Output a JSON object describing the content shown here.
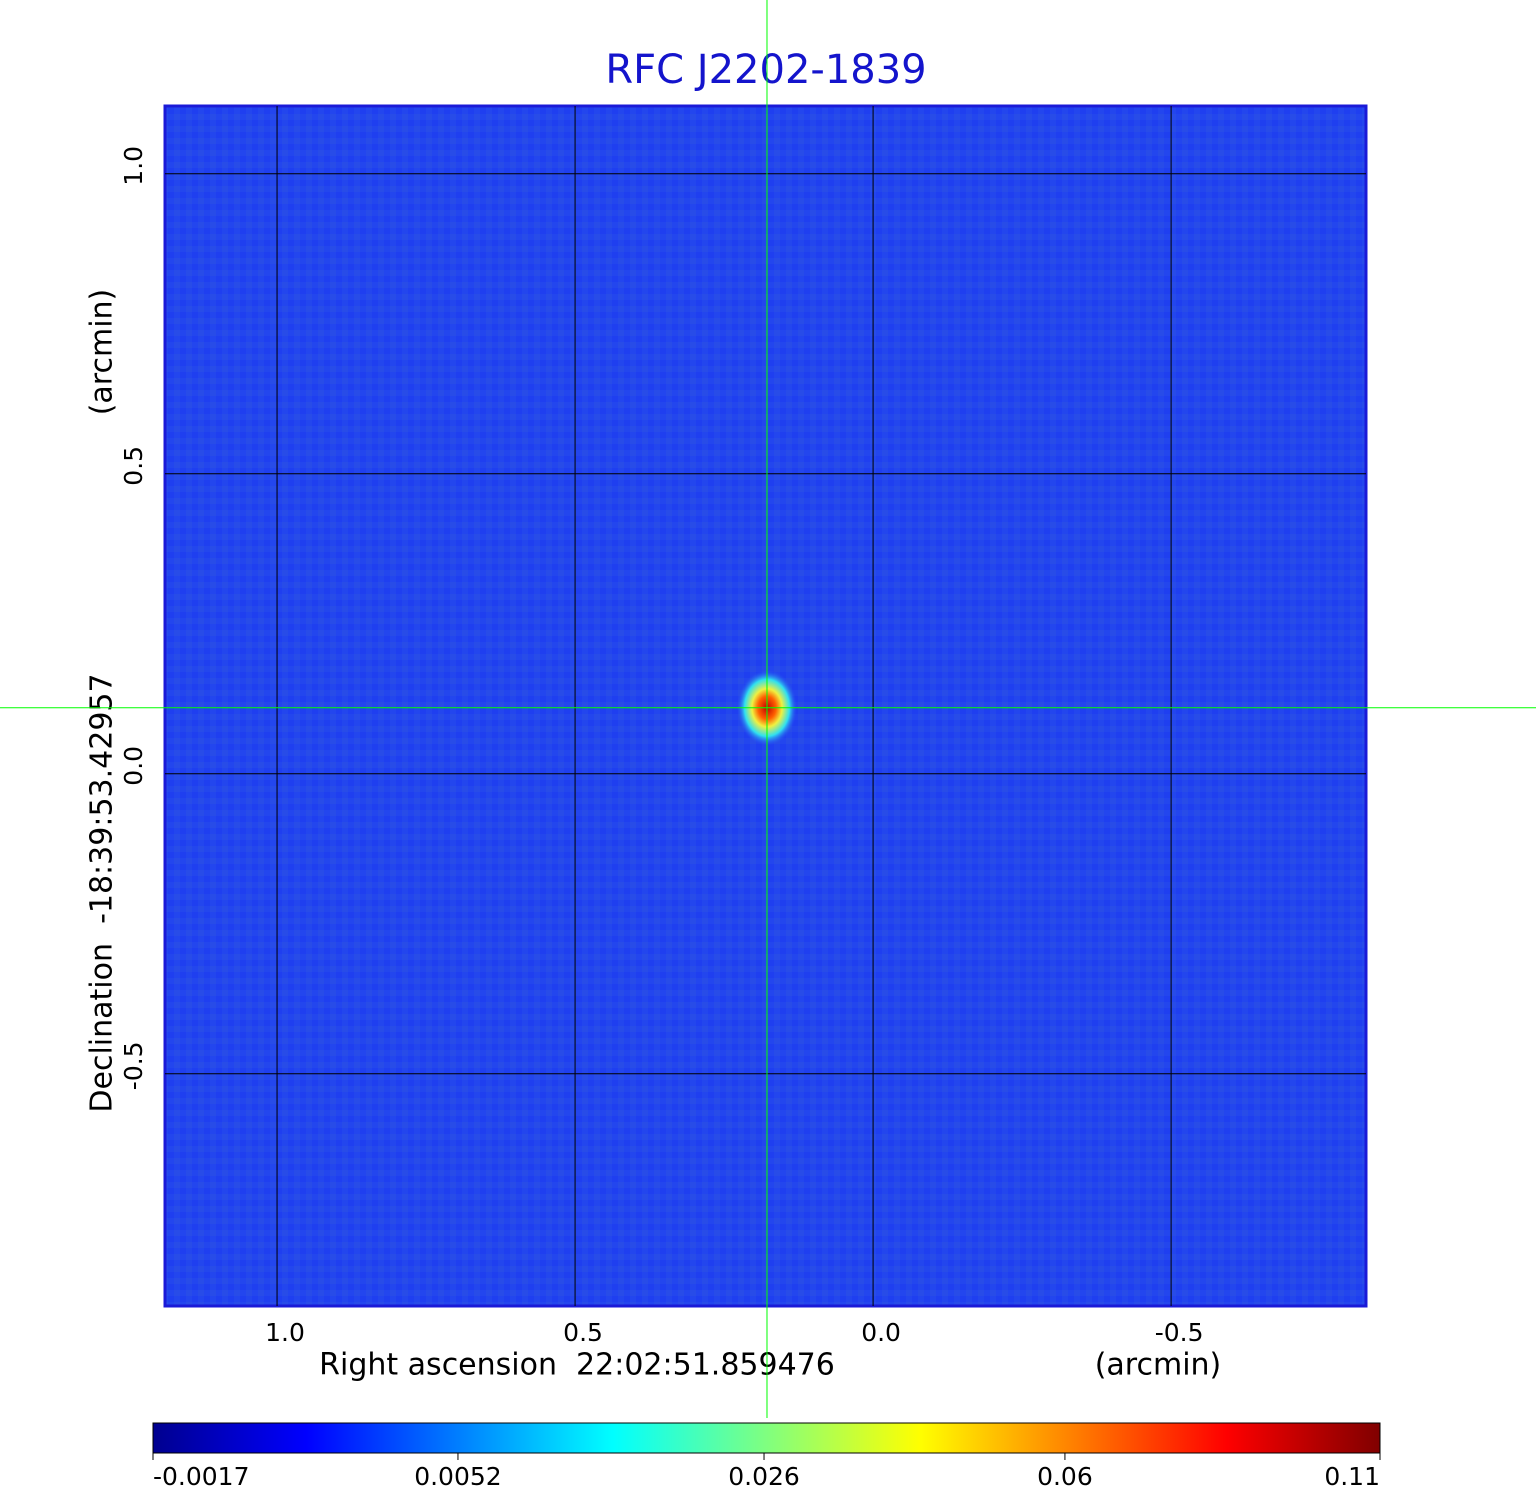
{
  "chart_data": {
    "type": "image",
    "title": "RFC J2202-1839",
    "x_label": "Right ascension  22:02:51.859476",
    "x_unit": "(arcmin)",
    "y_label": "Declination  -18:39:53.42957",
    "y_unit": "(arcmin)",
    "xlim": [
      1.188,
      -0.827
    ],
    "ylim": [
      -0.887,
      1.113
    ],
    "xticks": [
      {
        "value": 1,
        "label": "1.0"
      },
      0.5,
      {
        "value": 0,
        "label": "0.0"
      },
      -0.5
    ],
    "yticks": [
      {
        "value": 1,
        "label": "1.0"
      },
      0.5,
      {
        "value": 0,
        "label": "0.0"
      },
      -0.5
    ],
    "grid": true,
    "crosshair": {
      "x": 0.178,
      "y": 0.11,
      "color": "#00ff00"
    },
    "colorbar": {
      "lim": [
        -0.0017,
        0.11
      ],
      "scale": "sqrt",
      "ticks": [
        -0.0017,
        0.0052,
        0.026,
        0.06,
        0.11
      ]
    }
  }
}
